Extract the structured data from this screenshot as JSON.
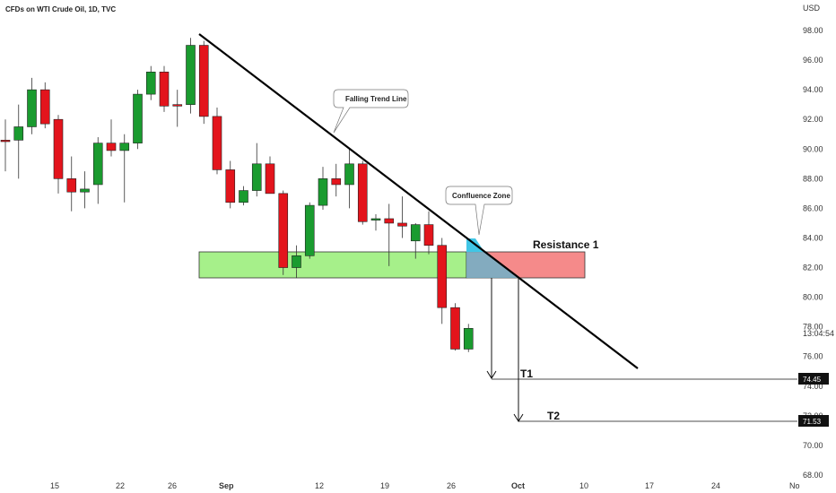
{
  "chart_data": {
    "type": "candlestick",
    "title": "CFDs on WTI Crude Oil, 1D, TVC",
    "currency": "USD",
    "y_axis_ticks": [
      98,
      96,
      94,
      92,
      90,
      88,
      86,
      84,
      82,
      80,
      78,
      76,
      74,
      72,
      70,
      68
    ],
    "y_tick_labels": [
      "98.00",
      "96.00",
      "94.00",
      "92.00",
      "90.00",
      "88.00",
      "86.00",
      "84.00",
      "82.00",
      "80.00",
      "78.00",
      "76.00",
      "74.00",
      "72.00",
      "70.00",
      "68.00"
    ],
    "x_tick_labels": [
      "15",
      "22",
      "26",
      "Sep",
      "12",
      "19",
      "26",
      "Oct",
      "10",
      "17",
      "24",
      "No"
    ],
    "countdown": "13:04:54",
    "colors": {
      "up": "#1a9b2f",
      "down": "#e3141c",
      "wick": "#333333"
    },
    "candles": [
      {
        "o": 90.6,
        "h": 92.0,
        "l": 88.5,
        "c": 90.5
      },
      {
        "o": 90.6,
        "h": 93.0,
        "l": 88.0,
        "c": 91.5
      },
      {
        "o": 91.5,
        "h": 94.8,
        "l": 91.0,
        "c": 94.0
      },
      {
        "o": 94.0,
        "h": 94.5,
        "l": 91.4,
        "c": 91.7
      },
      {
        "o": 92.0,
        "h": 92.3,
        "l": 87.0,
        "c": 88.0
      },
      {
        "o": 88.0,
        "h": 89.5,
        "l": 85.8,
        "c": 87.1
      },
      {
        "o": 87.1,
        "h": 88.5,
        "l": 86.0,
        "c": 87.3
      },
      {
        "o": 87.6,
        "h": 90.8,
        "l": 86.3,
        "c": 90.4
      },
      {
        "o": 90.4,
        "h": 92.0,
        "l": 89.5,
        "c": 89.9
      },
      {
        "o": 89.9,
        "h": 91.0,
        "l": 86.4,
        "c": 90.4
      },
      {
        "o": 90.4,
        "h": 94.0,
        "l": 90.0,
        "c": 93.7
      },
      {
        "o": 93.7,
        "h": 95.6,
        "l": 93.3,
        "c": 95.2
      },
      {
        "o": 95.2,
        "h": 95.6,
        "l": 92.5,
        "c": 92.9
      },
      {
        "o": 93.0,
        "h": 94.0,
        "l": 91.5,
        "c": 92.9
      },
      {
        "o": 93.0,
        "h": 97.5,
        "l": 92.4,
        "c": 97.0
      },
      {
        "o": 97.0,
        "h": 97.3,
        "l": 91.7,
        "c": 92.2
      },
      {
        "o": 92.2,
        "h": 92.8,
        "l": 88.3,
        "c": 88.6
      },
      {
        "o": 88.6,
        "h": 89.2,
        "l": 86.0,
        "c": 86.4
      },
      {
        "o": 86.4,
        "h": 87.5,
        "l": 86.2,
        "c": 87.2
      },
      {
        "o": 87.2,
        "h": 90.4,
        "l": 86.8,
        "c": 89.0
      },
      {
        "o": 89.0,
        "h": 89.5,
        "l": 87.0,
        "c": 87.0
      },
      {
        "o": 87.0,
        "h": 87.2,
        "l": 81.5,
        "c": 82.0
      },
      {
        "o": 82.0,
        "h": 83.5,
        "l": 81.3,
        "c": 82.8
      },
      {
        "o": 82.8,
        "h": 86.4,
        "l": 82.6,
        "c": 86.2
      },
      {
        "o": 86.2,
        "h": 88.8,
        "l": 85.9,
        "c": 88.0
      },
      {
        "o": 88.0,
        "h": 89.0,
        "l": 86.8,
        "c": 87.6
      },
      {
        "o": 87.6,
        "h": 90.0,
        "l": 86.0,
        "c": 89.0
      },
      {
        "o": 89.0,
        "h": 89.2,
        "l": 84.9,
        "c": 85.1
      },
      {
        "o": 85.2,
        "h": 85.6,
        "l": 84.5,
        "c": 85.3
      },
      {
        "o": 85.3,
        "h": 86.3,
        "l": 82.1,
        "c": 85.0
      },
      {
        "o": 85.0,
        "h": 86.8,
        "l": 84.0,
        "c": 84.8
      },
      {
        "o": 83.8,
        "h": 85.0,
        "l": 82.6,
        "c": 84.9
      },
      {
        "o": 84.9,
        "h": 85.8,
        "l": 82.9,
        "c": 83.5
      },
      {
        "o": 83.5,
        "h": 84.0,
        "l": 78.2,
        "c": 79.3
      },
      {
        "o": 79.3,
        "h": 79.6,
        "l": 76.4,
        "c": 76.5
      },
      {
        "o": 76.5,
        "h": 78.2,
        "l": 76.3,
        "c": 77.9
      }
    ],
    "support_zone": {
      "from": 81.2,
      "to": 83.0,
      "label": "Resistance 1"
    },
    "trend_line": {
      "label": "Falling Trend Line",
      "start_price": 97.7,
      "end_price": 75.1
    },
    "confluence_label": "Confluence Zone",
    "targets": [
      {
        "name": "T1",
        "price": 74.45,
        "tag": "74.45"
      },
      {
        "name": "T2",
        "price": 71.53,
        "tag": "71.53"
      }
    ]
  }
}
